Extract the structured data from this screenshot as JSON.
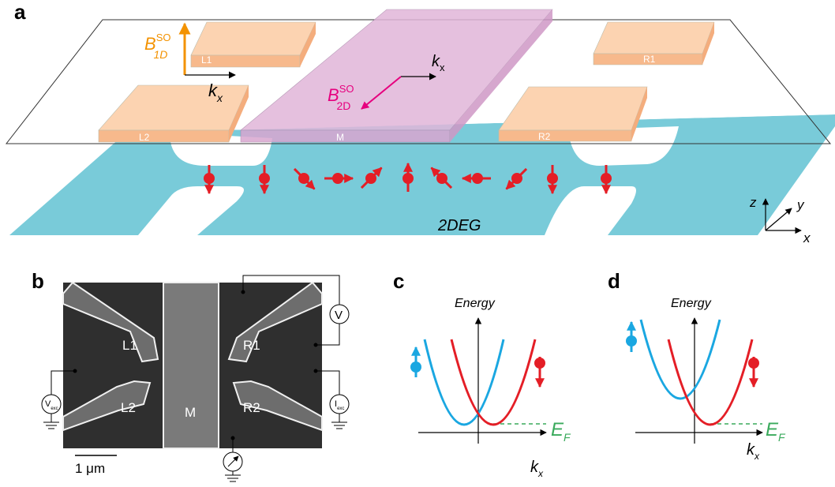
{
  "panel_a": {
    "label": "a",
    "gates": [
      "L1",
      "R1",
      "L2",
      "M",
      "R2"
    ],
    "field_1d": {
      "base": "B",
      "sup": "SO",
      "sub": "1D"
    },
    "field_2d": {
      "base": "B",
      "sup": "SO",
      "sub": "2D"
    },
    "kx_1d": {
      "base": "k",
      "sub": "x"
    },
    "kx_2d": {
      "base": "k",
      "sub": "x"
    },
    "channel": "2DEG",
    "axes": [
      "z",
      "y",
      "x"
    ]
  },
  "panel_b": {
    "label": "b",
    "gates": [
      "L1",
      "L2",
      "M",
      "R1",
      "R2"
    ],
    "voltmeter": "V",
    "v_exc": {
      "base": "V",
      "sub": "exc"
    },
    "i_exc": {
      "base": "I",
      "sub": "exc"
    },
    "scale_bar": "1 μm"
  },
  "panel_c": {
    "label": "c",
    "y_axis": "Energy",
    "fermi": {
      "base": "E",
      "sub": "F"
    },
    "x_axis": {
      "base": "k",
      "sub": "x"
    }
  },
  "panel_d": {
    "label": "d",
    "y_axis": "Energy",
    "fermi": {
      "base": "E",
      "sub": "F"
    },
    "x_axis": {
      "base": "k",
      "sub": "x"
    }
  }
}
